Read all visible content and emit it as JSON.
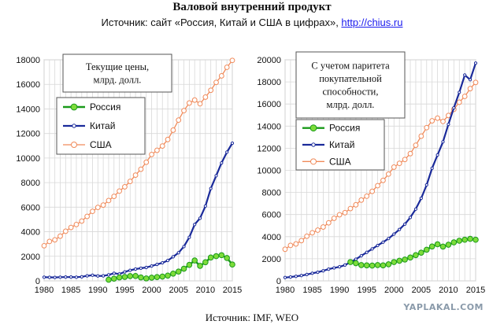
{
  "header": {
    "title": "Валовой внутренний продукт",
    "subtitle_prefix": "Источник: сайт «Россия, Китай и США в цифрах», ",
    "subtitle_link": "http://chius.ru"
  },
  "footer": {
    "source": "Источник: IMF, WEO"
  },
  "watermark": "YAPLAKAL.COM",
  "colors": {
    "russia": "#1a9a1a",
    "russia_marker": "#7ddc3a",
    "china": "#1a2a9a",
    "usa": "#f08a5a",
    "grid": "#d8d8d8"
  },
  "chart_data": [
    {
      "type": "line",
      "annotation": [
        "Текущие цены,",
        "млрд. долл."
      ],
      "xlim": [
        1980,
        2015
      ],
      "xticks": [
        1980,
        1985,
        1990,
        1995,
        2000,
        2005,
        2010,
        2015
      ],
      "ylim": [
        0,
        18000
      ],
      "yticks": [
        0,
        2000,
        4000,
        6000,
        8000,
        10000,
        12000,
        14000,
        16000,
        18000
      ],
      "grid": true,
      "legend": "top-left",
      "series": [
        {
          "name": "Россия",
          "x": [
            1992,
            1993,
            1994,
            1995,
            1996,
            1997,
            1998,
            1999,
            2000,
            2001,
            2002,
            2003,
            2004,
            2005,
            2006,
            2007,
            2008,
            2009,
            2010,
            2011,
            2012,
            2013,
            2014,
            2015
          ],
          "values": [
            90,
            180,
            280,
            320,
            390,
            400,
            280,
            200,
            260,
            310,
            350,
            430,
            590,
            760,
            990,
            1300,
            1660,
            1220,
            1520,
            1900,
            2010,
            2090,
            1860,
            1330
          ]
        },
        {
          "name": "Китай",
          "x": [
            1980,
            1981,
            1982,
            1983,
            1984,
            1985,
            1986,
            1987,
            1988,
            1989,
            1990,
            1991,
            1992,
            1993,
            1994,
            1995,
            1996,
            1997,
            1998,
            1999,
            2000,
            2001,
            2002,
            2003,
            2004,
            2005,
            2006,
            2007,
            2008,
            2009,
            2010,
            2011,
            2012,
            2013,
            2014,
            2015
          ],
          "values": [
            300,
            290,
            280,
            300,
            310,
            310,
            300,
            330,
            410,
            460,
            400,
            410,
            490,
            620,
            560,
            730,
            860,
            960,
            1030,
            1090,
            1210,
            1340,
            1470,
            1660,
            1960,
            2290,
            2790,
            3550,
            4590,
            5100,
            6090,
            7520,
            8560,
            9600,
            10480,
            11210
          ]
        },
        {
          "name": "США",
          "x": [
            1980,
            1981,
            1982,
            1983,
            1984,
            1985,
            1986,
            1987,
            1988,
            1989,
            1990,
            1991,
            1992,
            1993,
            1994,
            1995,
            1996,
            1997,
            1998,
            1999,
            2000,
            2001,
            2002,
            2003,
            2004,
            2005,
            2006,
            2007,
            2008,
            2009,
            2010,
            2011,
            2012,
            2013,
            2014,
            2015
          ],
          "values": [
            2860,
            3210,
            3340,
            3640,
            4040,
            4350,
            4590,
            4870,
            5250,
            5660,
            5980,
            6170,
            6540,
            6880,
            7310,
            7660,
            8100,
            8610,
            9090,
            9660,
            10290,
            10630,
            10980,
            11510,
            12270,
            13090,
            13860,
            14480,
            14720,
            14420,
            14960,
            15520,
            16160,
            16690,
            17390,
            17950
          ]
        }
      ]
    },
    {
      "type": "line",
      "annotation": [
        "С учетом паритета",
        "покупательной",
        "способности,",
        "млрд. долл."
      ],
      "xlim": [
        1980,
        2015
      ],
      "xticks": [
        1980,
        1985,
        1990,
        1995,
        2000,
        2005,
        2010,
        2015
      ],
      "ylim": [
        0,
        20000
      ],
      "yticks": [
        0,
        2000,
        4000,
        6000,
        8000,
        10000,
        12000,
        14000,
        16000,
        18000,
        20000
      ],
      "grid": true,
      "legend": "top-left",
      "series": [
        {
          "name": "Россия",
          "x": [
            1992,
            1993,
            1994,
            1995,
            1996,
            1997,
            1998,
            1999,
            2000,
            2001,
            2002,
            2003,
            2004,
            2005,
            2006,
            2007,
            2008,
            2009,
            2010,
            2011,
            2012,
            2013,
            2014,
            2015
          ],
          "values": [
            1700,
            1600,
            1430,
            1400,
            1380,
            1430,
            1400,
            1500,
            1700,
            1820,
            1930,
            2110,
            2330,
            2550,
            2820,
            3110,
            3310,
            3100,
            3270,
            3480,
            3630,
            3720,
            3800,
            3720
          ]
        },
        {
          "name": "Китай",
          "x": [
            1980,
            1981,
            1982,
            1983,
            1984,
            1985,
            1986,
            1987,
            1988,
            1989,
            1990,
            1991,
            1992,
            1993,
            1994,
            1995,
            1996,
            1997,
            1998,
            1999,
            2000,
            2001,
            2002,
            2003,
            2004,
            2005,
            2006,
            2007,
            2008,
            2009,
            2010,
            2011,
            2012,
            2013,
            2014,
            2015
          ],
          "values": [
            300,
            350,
            410,
            480,
            580,
            690,
            780,
            910,
            1060,
            1170,
            1270,
            1430,
            1690,
            1960,
            2270,
            2580,
            2890,
            3200,
            3500,
            3830,
            4230,
            4650,
            5130,
            5740,
            6490,
            7470,
            8680,
            10190,
            11390,
            12580,
            14160,
            15650,
            17060,
            18620,
            18200,
            19700
          ]
        },
        {
          "name": "США",
          "x": [
            1980,
            1981,
            1982,
            1983,
            1984,
            1985,
            1986,
            1987,
            1988,
            1989,
            1990,
            1991,
            1992,
            1993,
            1994,
            1995,
            1996,
            1997,
            1998,
            1999,
            2000,
            2001,
            2002,
            2003,
            2004,
            2005,
            2006,
            2007,
            2008,
            2009,
            2010,
            2011,
            2012,
            2013,
            2014,
            2015
          ],
          "values": [
            2860,
            3210,
            3340,
            3640,
            4040,
            4350,
            4590,
            4870,
            5250,
            5660,
            5980,
            6170,
            6540,
            6880,
            7310,
            7660,
            8100,
            8610,
            9090,
            9660,
            10290,
            10630,
            10980,
            11510,
            12270,
            13090,
            13860,
            14480,
            14720,
            14420,
            14960,
            15520,
            16160,
            16690,
            17390,
            17950
          ]
        }
      ]
    }
  ]
}
